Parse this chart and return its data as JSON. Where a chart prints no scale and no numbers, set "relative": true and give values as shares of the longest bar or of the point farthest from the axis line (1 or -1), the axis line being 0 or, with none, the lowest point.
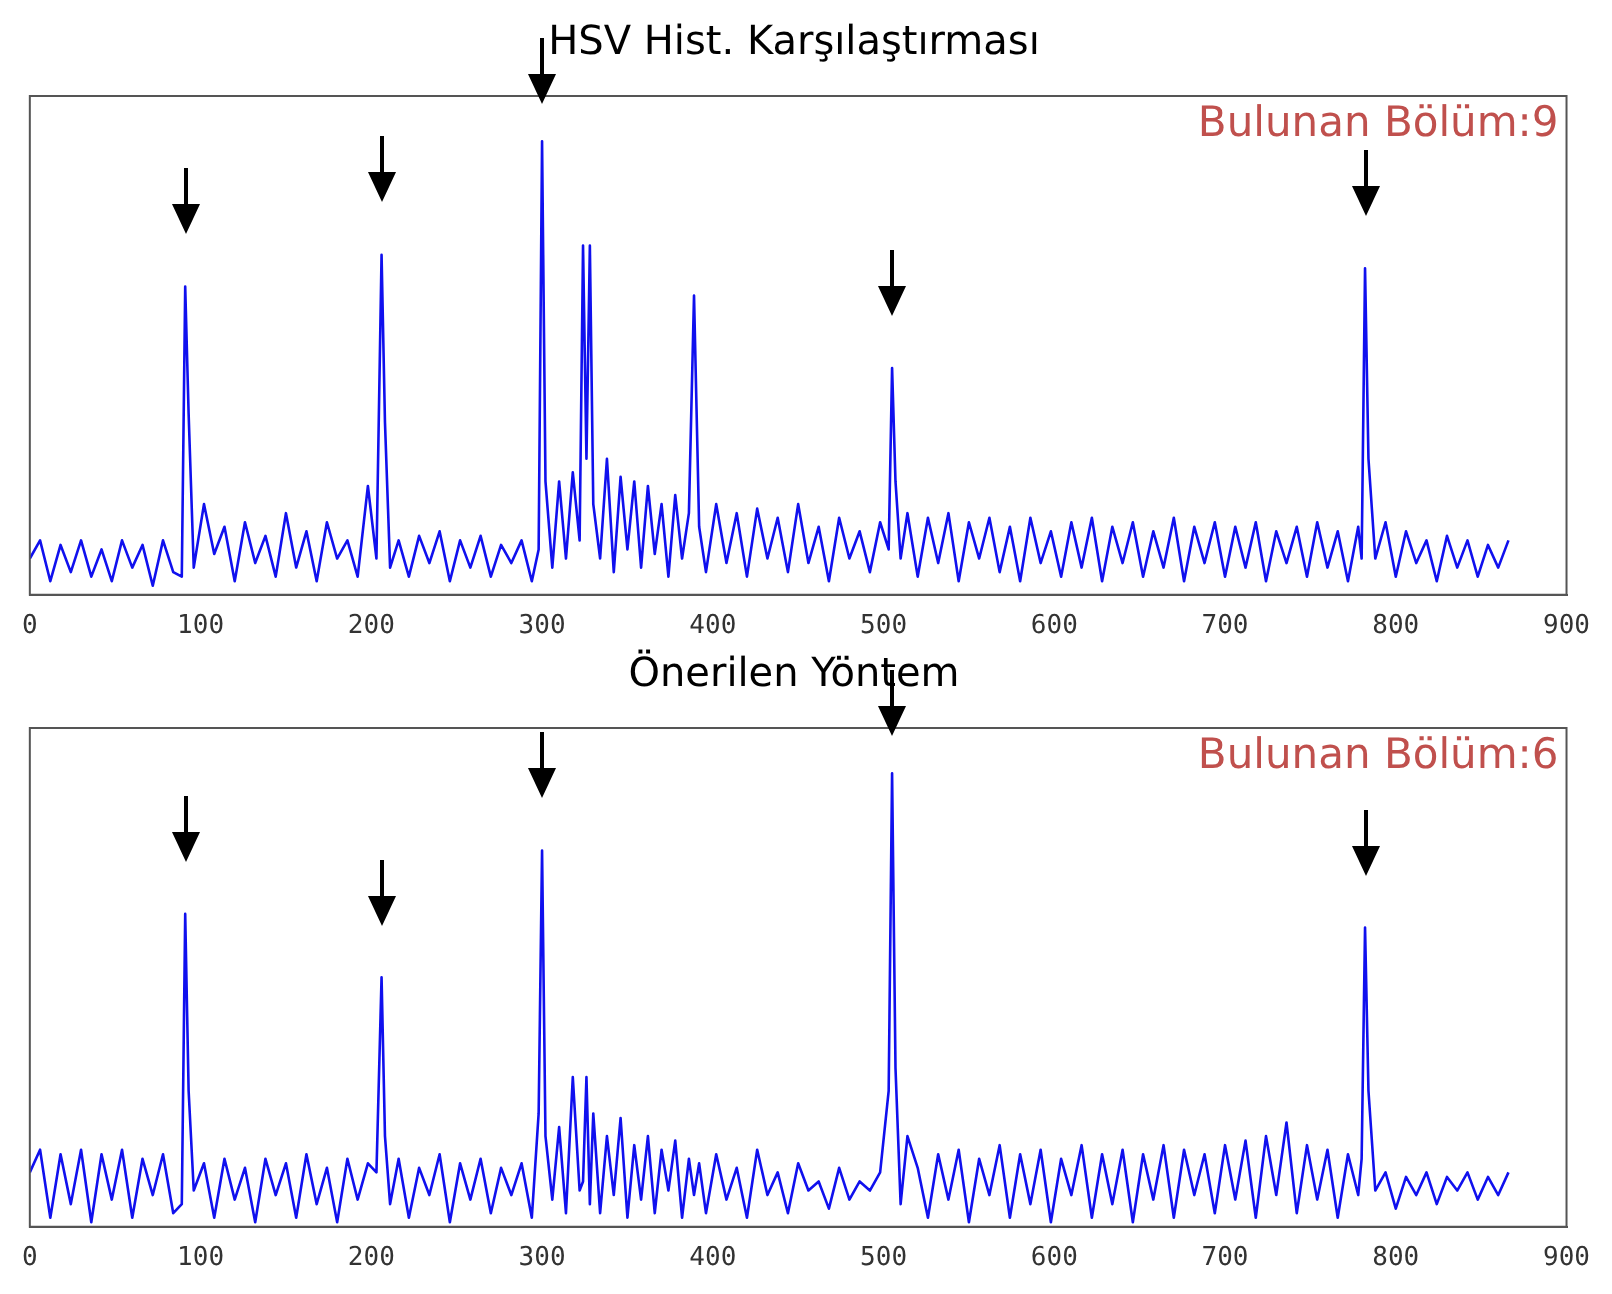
{
  "chart_data": [
    {
      "type": "line",
      "title": "HSV Hist. Karşılaştırması",
      "relative": true,
      "xlim": [
        0,
        900
      ],
      "xticks": [
        0,
        100,
        200,
        300,
        400,
        500,
        600,
        700,
        800,
        900
      ],
      "grid": false,
      "legend": false,
      "marker": "none",
      "annotations": [
        "Bulunan Bölüm:9"
      ],
      "series": [
        {
          "color": "#1010ee",
          "x": [
            0,
            6,
            12,
            18,
            24,
            30,
            36,
            42,
            48,
            54,
            60,
            66,
            72,
            78,
            84,
            89,
            91,
            93,
            96,
            102,
            108,
            114,
            120,
            126,
            132,
            138,
            144,
            150,
            156,
            162,
            168,
            174,
            180,
            186,
            192,
            198,
            203,
            206,
            208,
            211,
            216,
            222,
            228,
            234,
            240,
            246,
            252,
            258,
            264,
            270,
            276,
            282,
            288,
            294,
            298,
            300,
            302,
            306,
            310,
            314,
            318,
            322,
            324,
            326,
            328,
            330,
            334,
            338,
            342,
            346,
            350,
            354,
            358,
            362,
            366,
            370,
            374,
            378,
            382,
            386,
            389,
            392,
            396,
            402,
            408,
            414,
            420,
            426,
            432,
            438,
            444,
            450,
            456,
            462,
            468,
            474,
            480,
            486,
            492,
            498,
            503,
            505,
            507,
            510,
            514,
            520,
            526,
            532,
            538,
            544,
            550,
            556,
            562,
            568,
            574,
            580,
            586,
            592,
            598,
            604,
            610,
            616,
            622,
            628,
            634,
            640,
            646,
            652,
            658,
            664,
            670,
            676,
            682,
            688,
            694,
            700,
            706,
            712,
            718,
            724,
            730,
            736,
            742,
            748,
            754,
            760,
            766,
            772,
            778,
            780,
            782,
            784,
            788,
            794,
            800,
            806,
            812,
            818,
            824,
            830,
            836,
            842,
            848,
            854,
            860,
            866
          ],
          "values": [
            0.08,
            0.12,
            0.03,
            0.11,
            0.05,
            0.12,
            0.04,
            0.1,
            0.03,
            0.12,
            0.06,
            0.11,
            0.02,
            0.12,
            0.05,
            0.04,
            0.68,
            0.4,
            0.06,
            0.2,
            0.09,
            0.15,
            0.03,
            0.16,
            0.07,
            0.13,
            0.04,
            0.18,
            0.06,
            0.14,
            0.03,
            0.16,
            0.08,
            0.12,
            0.04,
            0.24,
            0.08,
            0.75,
            0.38,
            0.06,
            0.12,
            0.04,
            0.13,
            0.07,
            0.14,
            0.03,
            0.12,
            0.06,
            0.13,
            0.04,
            0.11,
            0.07,
            0.12,
            0.03,
            0.1,
            1.0,
            0.25,
            0.06,
            0.25,
            0.08,
            0.27,
            0.12,
            0.77,
            0.3,
            0.77,
            0.2,
            0.08,
            0.3,
            0.05,
            0.26,
            0.1,
            0.25,
            0.06,
            0.24,
            0.09,
            0.2,
            0.04,
            0.22,
            0.08,
            0.18,
            0.66,
            0.15,
            0.05,
            0.2,
            0.07,
            0.18,
            0.04,
            0.19,
            0.08,
            0.17,
            0.05,
            0.2,
            0.07,
            0.15,
            0.03,
            0.17,
            0.08,
            0.14,
            0.05,
            0.16,
            0.1,
            0.5,
            0.25,
            0.08,
            0.18,
            0.04,
            0.17,
            0.07,
            0.18,
            0.03,
            0.16,
            0.08,
            0.17,
            0.05,
            0.15,
            0.03,
            0.17,
            0.07,
            0.14,
            0.04,
            0.16,
            0.06,
            0.17,
            0.03,
            0.15,
            0.07,
            0.16,
            0.04,
            0.14,
            0.06,
            0.17,
            0.03,
            0.15,
            0.07,
            0.16,
            0.04,
            0.15,
            0.06,
            0.16,
            0.03,
            0.14,
            0.07,
            0.15,
            0.04,
            0.16,
            0.06,
            0.14,
            0.03,
            0.15,
            0.08,
            0.72,
            0.3,
            0.08,
            0.16,
            0.04,
            0.14,
            0.07,
            0.12,
            0.03,
            0.13,
            0.06,
            0.12,
            0.04,
            0.11,
            0.06,
            0.12
          ]
        }
      ]
    },
    {
      "type": "line",
      "title": "Önerilen Yöntem",
      "relative": true,
      "xlim": [
        0,
        900
      ],
      "xticks": [
        0,
        100,
        200,
        300,
        400,
        500,
        600,
        700,
        800,
        900
      ],
      "grid": false,
      "legend": false,
      "marker": "none",
      "annotations": [
        "Bulunan Bölüm:6"
      ],
      "series": [
        {
          "color": "#1010ee",
          "x": [
            0,
            6,
            12,
            18,
            24,
            30,
            36,
            42,
            48,
            54,
            60,
            66,
            72,
            78,
            84,
            89,
            91,
            93,
            96,
            102,
            108,
            114,
            120,
            126,
            132,
            138,
            144,
            150,
            156,
            162,
            168,
            174,
            180,
            186,
            192,
            198,
            203,
            206,
            208,
            211,
            216,
            222,
            228,
            234,
            240,
            246,
            252,
            258,
            264,
            270,
            276,
            282,
            288,
            294,
            298,
            300,
            302,
            306,
            310,
            314,
            318,
            322,
            324,
            326,
            328,
            330,
            334,
            338,
            342,
            346,
            350,
            354,
            358,
            362,
            366,
            370,
            374,
            378,
            382,
            386,
            389,
            392,
            396,
            402,
            408,
            414,
            420,
            426,
            432,
            438,
            444,
            450,
            456,
            462,
            468,
            474,
            480,
            486,
            492,
            498,
            503,
            505,
            507,
            510,
            514,
            520,
            526,
            532,
            538,
            544,
            550,
            556,
            562,
            568,
            574,
            580,
            586,
            592,
            598,
            604,
            610,
            616,
            622,
            628,
            634,
            640,
            646,
            652,
            658,
            664,
            670,
            676,
            682,
            688,
            694,
            700,
            706,
            712,
            718,
            724,
            730,
            736,
            742,
            748,
            754,
            760,
            766,
            772,
            778,
            780,
            782,
            784,
            788,
            794,
            800,
            806,
            812,
            818,
            824,
            830,
            836,
            842,
            848,
            854,
            860,
            866
          ],
          "values": [
            0.12,
            0.17,
            0.02,
            0.16,
            0.05,
            0.17,
            0.01,
            0.16,
            0.06,
            0.17,
            0.02,
            0.15,
            0.07,
            0.16,
            0.03,
            0.05,
            0.69,
            0.3,
            0.08,
            0.14,
            0.02,
            0.15,
            0.06,
            0.13,
            0.01,
            0.15,
            0.07,
            0.14,
            0.02,
            0.16,
            0.05,
            0.13,
            0.01,
            0.15,
            0.06,
            0.14,
            0.12,
            0.55,
            0.2,
            0.05,
            0.15,
            0.02,
            0.13,
            0.07,
            0.16,
            0.01,
            0.14,
            0.06,
            0.15,
            0.03,
            0.13,
            0.07,
            0.14,
            0.02,
            0.25,
            0.83,
            0.2,
            0.06,
            0.22,
            0.03,
            0.33,
            0.08,
            0.1,
            0.33,
            0.05,
            0.25,
            0.03,
            0.2,
            0.07,
            0.24,
            0.02,
            0.18,
            0.06,
            0.2,
            0.03,
            0.17,
            0.08,
            0.19,
            0.02,
            0.15,
            0.07,
            0.14,
            0.03,
            0.16,
            0.06,
            0.13,
            0.02,
            0.17,
            0.07,
            0.12,
            0.03,
            0.14,
            0.08,
            0.1,
            0.04,
            0.13,
            0.06,
            0.1,
            0.08,
            0.12,
            0.3,
            1.0,
            0.35,
            0.05,
            0.2,
            0.13,
            0.02,
            0.16,
            0.06,
            0.17,
            0.01,
            0.15,
            0.07,
            0.18,
            0.02,
            0.16,
            0.05,
            0.17,
            0.01,
            0.15,
            0.07,
            0.18,
            0.02,
            0.16,
            0.05,
            0.17,
            0.01,
            0.16,
            0.06,
            0.18,
            0.02,
            0.17,
            0.07,
            0.16,
            0.03,
            0.18,
            0.06,
            0.19,
            0.02,
            0.2,
            0.07,
            0.23,
            0.03,
            0.18,
            0.06,
            0.17,
            0.02,
            0.16,
            0.07,
            0.15,
            0.66,
            0.3,
            0.08,
            0.12,
            0.04,
            0.11,
            0.07,
            0.12,
            0.05,
            0.11,
            0.08,
            0.12,
            0.06,
            0.11,
            0.07,
            0.12
          ]
        }
      ]
    }
  ]
}
